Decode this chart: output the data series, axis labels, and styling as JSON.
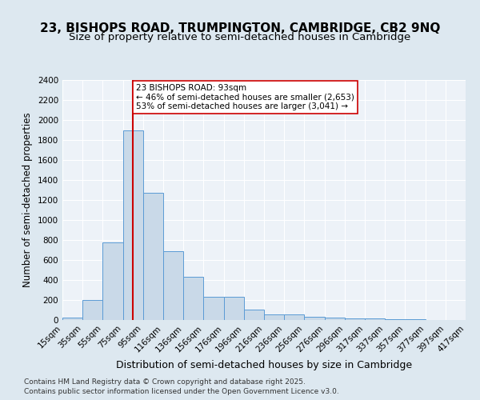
{
  "title1": "23, BISHOPS ROAD, TRUMPINGTON, CAMBRIDGE, CB2 9NQ",
  "title2": "Size of property relative to semi-detached houses in Cambridge",
  "xlabel": "Distribution of semi-detached houses by size in Cambridge",
  "ylabel": "Number of semi-detached properties",
  "bin_labels": [
    "15sqm",
    "35sqm",
    "55sqm",
    "75sqm",
    "95sqm",
    "116sqm",
    "136sqm",
    "156sqm",
    "176sqm",
    "196sqm",
    "216sqm",
    "236sqm",
    "256sqm",
    "276sqm",
    "296sqm",
    "317sqm",
    "337sqm",
    "357sqm",
    "377sqm",
    "397sqm",
    "417sqm"
  ],
  "bar_heights": [
    25,
    200,
    775,
    1900,
    1275,
    690,
    435,
    230,
    230,
    105,
    60,
    55,
    35,
    25,
    20,
    20,
    5,
    5,
    2,
    2
  ],
  "bar_color": "#c9d9e8",
  "bar_edge_color": "#5b9bd5",
  "red_line_x": 3.5,
  "annotation_title": "23 BISHOPS ROAD: 93sqm",
  "annotation_line1": "← 46% of semi-detached houses are smaller (2,653)",
  "annotation_line2": "53% of semi-detached houses are larger (3,041) →",
  "annotation_box_color": "#ffffff",
  "annotation_box_edge": "#cc0000",
  "red_line_color": "#cc0000",
  "ylim": [
    0,
    2400
  ],
  "yticks": [
    0,
    200,
    400,
    600,
    800,
    1000,
    1200,
    1400,
    1600,
    1800,
    2000,
    2200,
    2400
  ],
  "footnote1": "Contains HM Land Registry data © Crown copyright and database right 2025.",
  "footnote2": "Contains public sector information licensed under the Open Government Licence v3.0.",
  "bg_color": "#dde8f0",
  "plot_bg_color": "#edf2f8",
  "title1_fontsize": 11,
  "title2_fontsize": 9.5,
  "xlabel_fontsize": 9,
  "ylabel_fontsize": 8.5,
  "tick_fontsize": 7.5,
  "annotation_fontsize": 7.5,
  "footnote_fontsize": 6.5
}
